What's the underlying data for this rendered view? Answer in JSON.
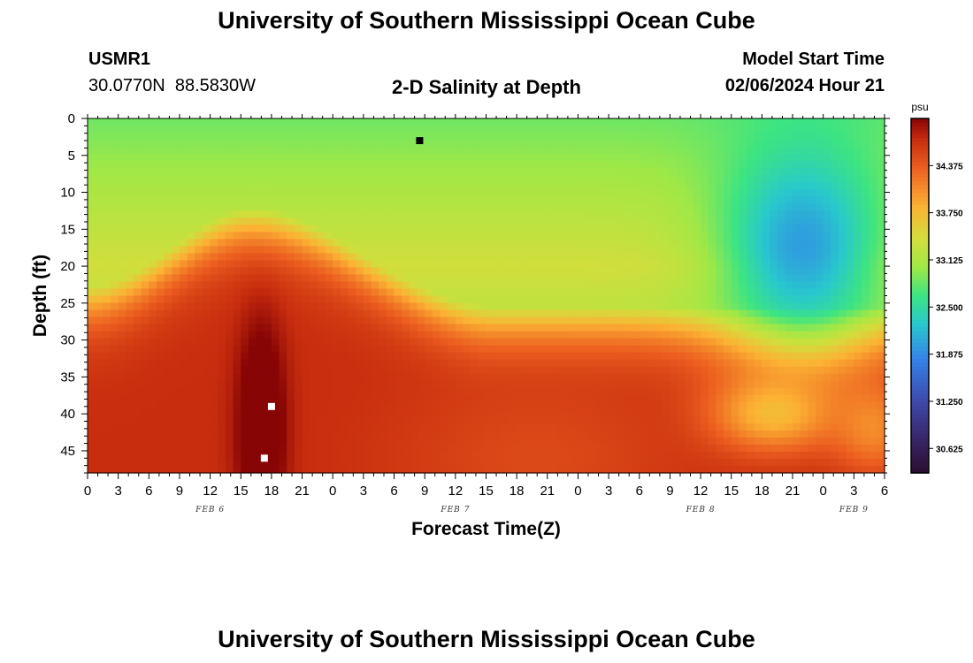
{
  "page": {
    "title": "University of Southern Mississippi Ocean Cube",
    "footer_title": "University of Southern Mississippi Ocean Cube",
    "station_id": "USMR1",
    "station_coords": "30.0770N  88.5830W",
    "plot_title": "2-D Salinity at Depth",
    "model_start_label": "Model Start Time",
    "model_start_value": "02/06/2024 Hour 21"
  },
  "chart_data": {
    "type": "heatmap",
    "title": "2-D Salinity at Depth",
    "xlabel": "Forecast Time(Z)",
    "ylabel": "Depth (ft)",
    "x_tick_labels": [
      "0",
      "3",
      "6",
      "9",
      "12",
      "15",
      "18",
      "21",
      "0",
      "3",
      "6",
      "9",
      "12",
      "15",
      "18",
      "21",
      "0",
      "3",
      "6",
      "9",
      "12",
      "15",
      "18",
      "21",
      "0",
      "3",
      "6"
    ],
    "x_range_hours": [
      0,
      78
    ],
    "day_labels": [
      {
        "label": "FEB 6",
        "hour": 12
      },
      {
        "label": "FEB 7",
        "hour": 36
      },
      {
        "label": "FEB 8",
        "hour": 60
      },
      {
        "label": "FEB 9",
        "hour": 75
      }
    ],
    "y_ticks": [
      0,
      5,
      10,
      15,
      20,
      25,
      30,
      35,
      40,
      45
    ],
    "y_range_ft": [
      0,
      48
    ],
    "y_inverted": true,
    "colorbar": {
      "units": "psu",
      "ticks": [
        "34.375",
        "33.750",
        "33.125",
        "32.500",
        "31.875",
        "31.250",
        "30.625"
      ],
      "range": [
        30.3,
        35.0
      ]
    },
    "markers": [
      {
        "name": "salinity-minimum-marker",
        "hour": 32.5,
        "depth_ft": 3,
        "color": "#000000"
      },
      {
        "name": "salinity-maximum-marker-1",
        "hour": 18,
        "depth_ft": 39,
        "color": "#ffffff"
      },
      {
        "name": "salinity-maximum-marker-2",
        "hour": 17.3,
        "depth_ft": 46,
        "color": "#ffffff"
      }
    ]
  }
}
